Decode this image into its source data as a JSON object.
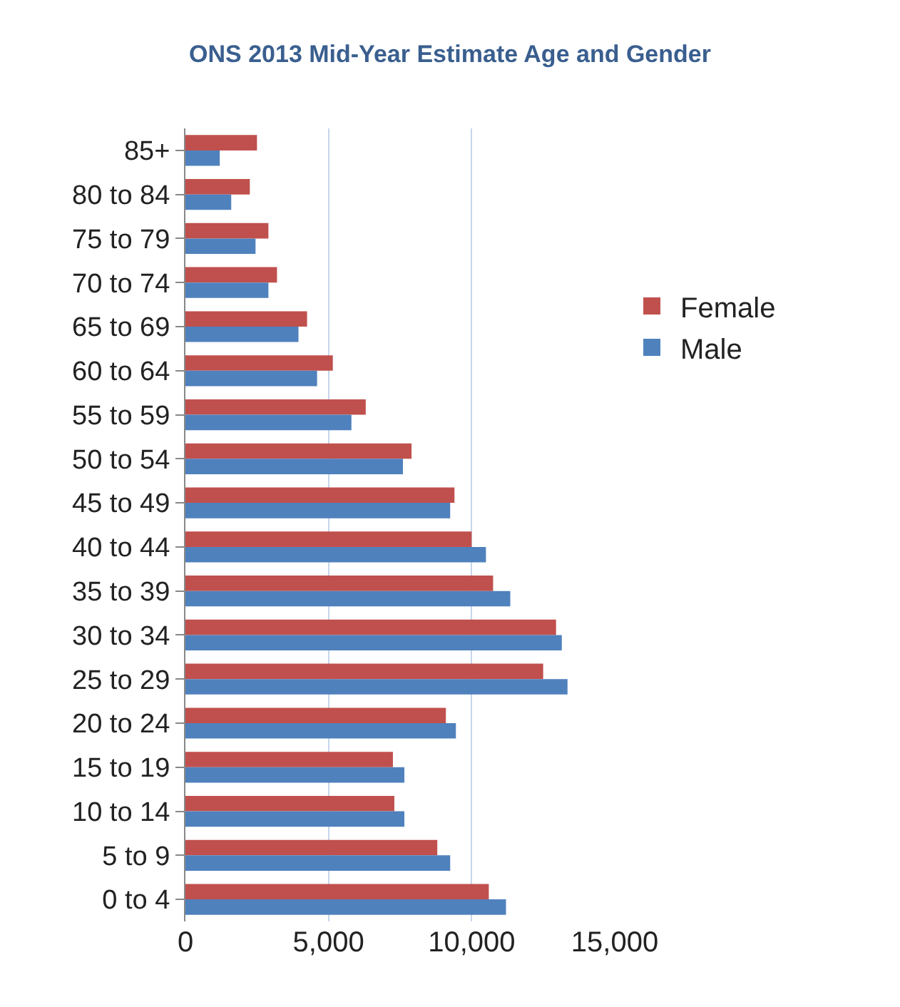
{
  "chart_data": {
    "type": "bar",
    "orientation": "horizontal",
    "title": "ONS 2013 Mid-Year Estimate Age and Gender",
    "categories": [
      "85+",
      "80 to 84",
      "75 to 79",
      "70 to 74",
      "65 to 69",
      "60 to 64",
      "55 to 59",
      "50 to 54",
      "45 to 49",
      "40 to 44",
      "35 to 39",
      "30 to 34",
      "25 to 29",
      "20 to 24",
      "15 to 19",
      "10 to 14",
      "5 to 9",
      "0 to 4"
    ],
    "series": [
      {
        "name": "Female",
        "color": "#c0504d",
        "values": [
          2500,
          2250,
          2900,
          3200,
          4250,
          5150,
          6300,
          7900,
          9400,
          10000,
          10750,
          12950,
          12500,
          9100,
          7250,
          7300,
          8800,
          10600
        ]
      },
      {
        "name": "Male",
        "color": "#4f81bd",
        "values": [
          1200,
          1600,
          2450,
          2900,
          3950,
          4600,
          5800,
          7600,
          9250,
          10500,
          11350,
          13150,
          13350,
          9450,
          7650,
          7650,
          9250,
          11200
        ]
      }
    ],
    "xlim": [
      0,
      15000
    ],
    "xticks": [
      0,
      {
        "value": 5000,
        "label": "5,000"
      },
      {
        "value": 10000,
        "label": "10,000"
      },
      {
        "value": 15000,
        "label": "15,000"
      }
    ],
    "grid": "x",
    "legend": "right"
  }
}
